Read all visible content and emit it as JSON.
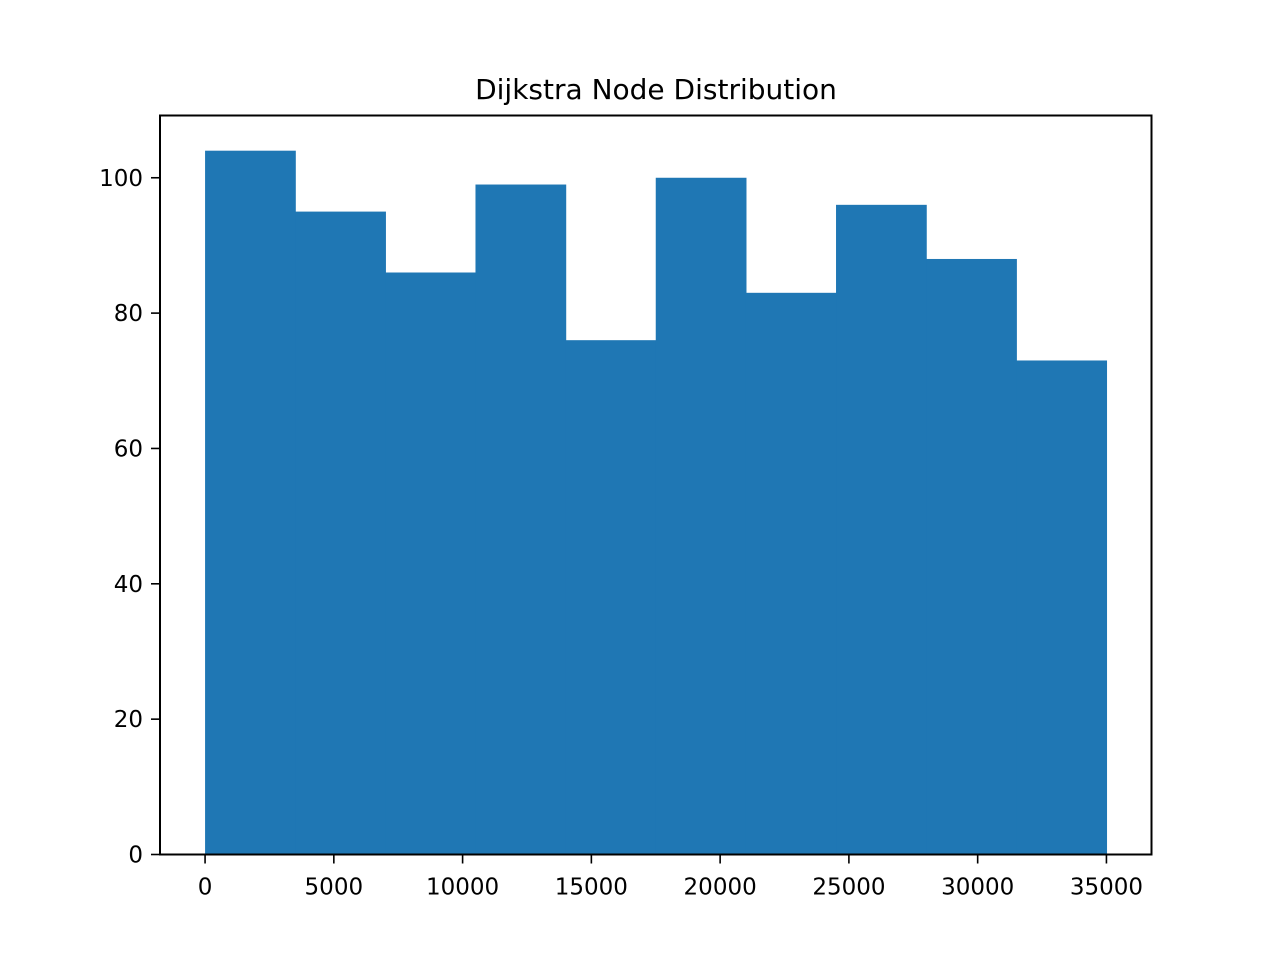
{
  "chart_data": {
    "type": "bar",
    "title": "Dijkstra Node Distribution",
    "xlabel": "",
    "ylabel": "",
    "histogram": true,
    "bin_edges": [
      0,
      3500,
      7000,
      10500,
      14000,
      17500,
      21000,
      24500,
      28000,
      31500,
      35000
    ],
    "values": [
      104,
      95,
      86,
      99,
      76,
      100,
      83,
      96,
      88,
      73
    ],
    "xlim": [
      -1750,
      36750
    ],
    "ylim": [
      0,
      109.2
    ],
    "xticks": [
      0,
      5000,
      10000,
      15000,
      20000,
      25000,
      30000,
      35000
    ],
    "yticks": [
      0,
      20,
      40,
      60,
      80,
      100
    ],
    "grid": false,
    "bar_color": "#1f77b4"
  }
}
